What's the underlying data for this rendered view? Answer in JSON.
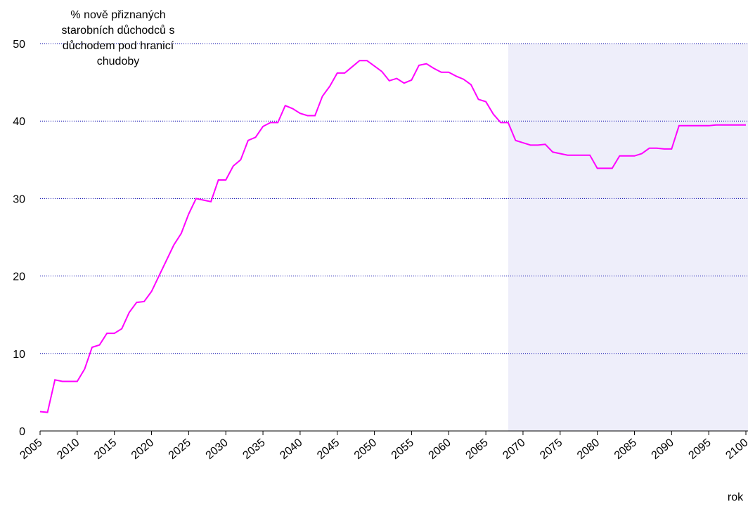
{
  "chart_data": {
    "type": "line",
    "ylabel": [
      "% nově přiznaných",
      "starobních důchodců s",
      "důchodem pod hranicí",
      "chudoby"
    ],
    "xlabel": "rok",
    "x": [
      2005,
      2006,
      2007,
      2008,
      2009,
      2010,
      2011,
      2012,
      2013,
      2014,
      2015,
      2016,
      2017,
      2018,
      2019,
      2020,
      2021,
      2022,
      2023,
      2024,
      2025,
      2026,
      2027,
      2028,
      2029,
      2030,
      2031,
      2032,
      2033,
      2034,
      2035,
      2036,
      2037,
      2038,
      2039,
      2040,
      2041,
      2042,
      2043,
      2044,
      2045,
      2046,
      2047,
      2048,
      2049,
      2050,
      2051,
      2052,
      2053,
      2054,
      2055,
      2056,
      2057,
      2058,
      2059,
      2060,
      2061,
      2062,
      2063,
      2064,
      2065,
      2066,
      2067,
      2068,
      2069,
      2070,
      2071,
      2072,
      2073,
      2074,
      2075,
      2076,
      2077,
      2078,
      2079,
      2080,
      2081,
      2082,
      2083,
      2084,
      2085,
      2086,
      2087,
      2088,
      2089,
      2090,
      2091,
      2092,
      2093,
      2094,
      2095,
      2096,
      2097,
      2098,
      2099,
      2100
    ],
    "series": [
      {
        "color": "#ff00ff",
        "values": [
          2.5,
          2.4,
          6.6,
          6.4,
          6.4,
          6.4,
          8,
          10.8,
          11.1,
          12.6,
          12.6,
          13.2,
          15.3,
          16.6,
          16.7,
          18,
          20,
          22,
          24,
          25.5,
          28,
          30,
          29.8,
          29.6,
          32.4,
          32.4,
          34.2,
          35,
          37.5,
          37.9,
          39.3,
          39.8,
          39.8,
          42,
          41.6,
          41,
          40.7,
          40.7,
          43.2,
          44.5,
          46.2,
          46.2,
          47,
          47.8,
          47.8,
          47.1,
          46.4,
          45.2,
          45.5,
          44.9,
          45.3,
          47.2,
          47.4,
          46.8,
          46.3,
          46.3,
          45.8,
          45.4,
          44.7,
          42.8,
          42.5,
          40.9,
          39.8,
          39.8,
          37.5,
          37.2,
          36.9,
          36.9,
          37,
          36,
          35.8,
          35.6,
          35.6,
          35.6,
          35.6,
          33.9,
          33.9,
          33.9,
          35.5,
          35.5,
          35.5,
          35.8,
          36.5,
          36.5,
          36.4,
          36.4,
          39.4,
          39.4,
          39.4,
          39.4,
          39.4,
          39.5,
          39.5,
          39.5,
          39.5,
          39.5
        ]
      }
    ],
    "xlim": [
      2005,
      2100
    ],
    "xticks": [
      2005,
      2010,
      2015,
      2020,
      2025,
      2030,
      2035,
      2040,
      2045,
      2050,
      2055,
      2060,
      2065,
      2070,
      2075,
      2080,
      2085,
      2090,
      2095,
      2100
    ],
    "ylim": [
      0,
      50
    ],
    "yticks": [
      0,
      10,
      20,
      30,
      40,
      50
    ],
    "grid": true,
    "shaded_region": [
      2068,
      2100
    ],
    "shade_color": "#eeeefa"
  }
}
